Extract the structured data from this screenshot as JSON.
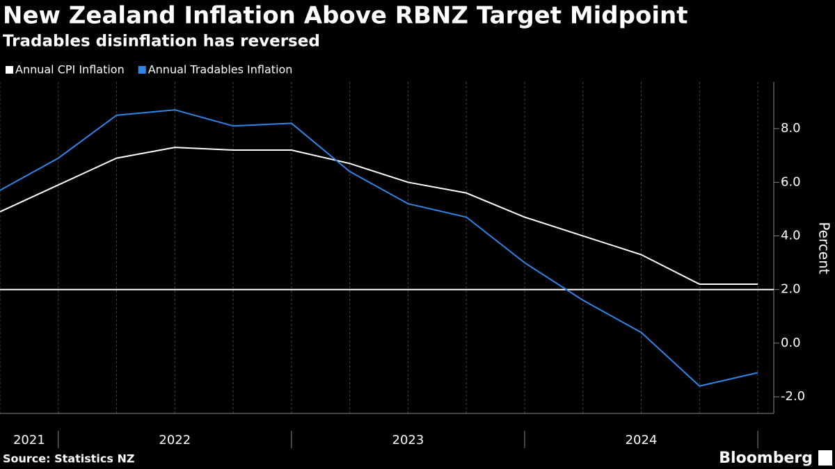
{
  "chart_data": {
    "type": "line",
    "title": "New Zealand Inflation Above RBNZ Target Midpoint",
    "subtitle": "Tradables disinflation has reversed",
    "x": [
      2021.75,
      2022.0,
      2022.25,
      2022.5,
      2022.75,
      2023.0,
      2023.25,
      2023.5,
      2023.75,
      2024.0,
      2024.25,
      2024.5,
      2024.75,
      2025.0
    ],
    "xlim": [
      2021.75,
      2025.0625
    ],
    "xticks": [
      {
        "value": 2021.875,
        "label": "2021"
      },
      {
        "value": 2022.5,
        "label": "2022"
      },
      {
        "value": 2023.5,
        "label": "2023"
      },
      {
        "value": 2024.5,
        "label": "2024"
      }
    ],
    "x_separators": [
      2022,
      2023,
      2024,
      2025
    ],
    "series": [
      {
        "name": "Annual CPI Inflation",
        "color": "#ffffff",
        "values": [
          4.9,
          5.9,
          6.9,
          7.3,
          7.2,
          7.2,
          6.7,
          6.0,
          5.6,
          4.7,
          4.0,
          3.3,
          2.2,
          2.2
        ]
      },
      {
        "name": "Annual Tradables Inflation",
        "color": "#2f86e8",
        "values": [
          5.7,
          6.9,
          8.5,
          8.7,
          8.1,
          8.2,
          6.4,
          5.2,
          4.7,
          3.0,
          1.6,
          0.4,
          -1.6,
          -1.1
        ]
      }
    ],
    "hline": 2,
    "ylim": [
      -2.62,
      9.74
    ],
    "yticks": [
      {
        "value": -2,
        "label": "-2.0"
      },
      {
        "value": 0,
        "label": "0.0"
      },
      {
        "value": 2,
        "label": "2.0"
      },
      {
        "value": 4,
        "label": "4.0"
      },
      {
        "value": 6,
        "label": "6.0"
      },
      {
        "value": 8,
        "label": "8.0"
      }
    ],
    "y_label": "Percent",
    "source": "Source: Statistics NZ",
    "brand": "Bloomberg"
  }
}
